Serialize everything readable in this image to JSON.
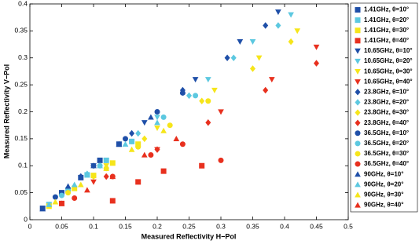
{
  "chart_data": {
    "type": "scatter",
    "x_label": "Measured Reflectivity H−Pol",
    "y_label": "Measured Reflectivity V−Pol",
    "xlim": [
      0,
      0.5
    ],
    "xticks": [
      0,
      0.05,
      0.1,
      0.15,
      0.2,
      0.25,
      0.3,
      0.35,
      0.4,
      0.45,
      0.5
    ],
    "ylim": [
      0,
      0.4
    ],
    "yticks": [
      0,
      0.05,
      0.1,
      0.15,
      0.2,
      0.25,
      0.3,
      0.35,
      0.4
    ],
    "grid": false,
    "legend": "outside-right",
    "series": [
      {
        "name": "1.41GHz, θ=10°",
        "color": "#1f4fa8",
        "marker": "square",
        "x": [
          0.02,
          0.05,
          0.08,
          0.11,
          0.14
        ],
        "values": [
          0.021,
          0.05,
          0.078,
          0.11,
          0.14
        ]
      },
      {
        "name": "1.41GHz, θ=20°",
        "color": "#5cc8e0",
        "marker": "square",
        "x": [
          0.03,
          0.06,
          0.09,
          0.12,
          0.16
        ],
        "values": [
          0.028,
          0.055,
          0.083,
          0.11,
          0.145
        ]
      },
      {
        "name": "1.41GHz, θ=30°",
        "color": "#f6e51a",
        "marker": "square",
        "x": [
          0.03,
          0.07,
          0.1,
          0.13,
          0.17
        ],
        "values": [
          0.025,
          0.058,
          0.082,
          0.105,
          0.14
        ]
      },
      {
        "name": "1.41GHz, θ=40°",
        "color": "#e8301e",
        "marker": "square",
        "x": [
          0.05,
          0.13,
          0.17,
          0.21,
          0.27
        ],
        "values": [
          0.03,
          0.035,
          0.07,
          0.09,
          0.1
        ]
      },
      {
        "name": "10.65GHz, θ=10°",
        "color": "#1f4fa8",
        "marker": "triangle-down",
        "x": [
          0.1,
          0.18,
          0.26,
          0.33,
          0.39
        ],
        "values": [
          0.1,
          0.18,
          0.26,
          0.33,
          0.385
        ]
      },
      {
        "name": "10.65GHz, θ=20°",
        "color": "#5cc8e0",
        "marker": "triangle-down",
        "x": [
          0.12,
          0.2,
          0.28,
          0.35,
          0.41
        ],
        "values": [
          0.11,
          0.19,
          0.26,
          0.33,
          0.38
        ]
      },
      {
        "name": "10.65GHz, θ=30°",
        "color": "#f6e51a",
        "marker": "triangle-down",
        "x": [
          0.12,
          0.2,
          0.29,
          0.36,
          0.42
        ],
        "values": [
          0.1,
          0.17,
          0.24,
          0.3,
          0.35
        ]
      },
      {
        "name": "10.65GHz, θ=40°",
        "color": "#e8301e",
        "marker": "triangle-down",
        "x": [
          0.1,
          0.2,
          0.3,
          0.38,
          0.45
        ],
        "values": [
          0.07,
          0.13,
          0.2,
          0.26,
          0.32
        ]
      },
      {
        "name": "23.8GHz, θ=10°",
        "color": "#1f4fa8",
        "marker": "diamond",
        "x": [
          0.08,
          0.16,
          0.24,
          0.31,
          0.37
        ],
        "values": [
          0.08,
          0.16,
          0.24,
          0.3,
          0.36
        ]
      },
      {
        "name": "23.8GHz, θ=20°",
        "color": "#5cc8e0",
        "marker": "diamond",
        "x": [
          0.09,
          0.17,
          0.25,
          0.32,
          0.39
        ],
        "values": [
          0.085,
          0.16,
          0.23,
          0.3,
          0.36
        ]
      },
      {
        "name": "23.8GHz, θ=30°",
        "color": "#f6e51a",
        "marker": "diamond",
        "x": [
          0.1,
          0.18,
          0.27,
          0.35,
          0.41
        ],
        "values": [
          0.08,
          0.15,
          0.22,
          0.28,
          0.33
        ]
      },
      {
        "name": "23.8GHz, θ=40°",
        "color": "#e8301e",
        "marker": "diamond",
        "x": [
          0.12,
          0.2,
          0.28,
          0.37,
          0.45
        ],
        "values": [
          0.08,
          0.13,
          0.18,
          0.24,
          0.29
        ]
      },
      {
        "name": "36.5GHz, θ=10°",
        "color": "#1f4fa8",
        "marker": "circle",
        "x": [
          0.04,
          0.1,
          0.15,
          0.2,
          0.24
        ],
        "values": [
          0.042,
          0.1,
          0.15,
          0.2,
          0.235
        ]
      },
      {
        "name": "36.5GHz, θ=20°",
        "color": "#5cc8e0",
        "marker": "circle",
        "x": [
          0.05,
          0.11,
          0.16,
          0.21,
          0.26
        ],
        "values": [
          0.045,
          0.1,
          0.145,
          0.19,
          0.23
        ]
      },
      {
        "name": "36.5GHz, θ=30°",
        "color": "#f6e51a",
        "marker": "circle",
        "x": [
          0.06,
          0.12,
          0.17,
          0.22,
          0.28
        ],
        "values": [
          0.05,
          0.095,
          0.135,
          0.175,
          0.22
        ]
      },
      {
        "name": "36.5GHz, θ=40°",
        "color": "#e8301e",
        "marker": "circle",
        "x": [
          0.07,
          0.13,
          0.19,
          0.24,
          0.3
        ],
        "values": [
          0.04,
          0.08,
          0.12,
          0.14,
          0.11
        ]
      },
      {
        "name": "90GHz, θ=10°",
        "color": "#1f4fa8",
        "marker": "triangle-up",
        "x": [
          0.02,
          0.06,
          0.1,
          0.14,
          0.19
        ],
        "values": [
          0.02,
          0.062,
          0.1,
          0.14,
          0.19
        ]
      },
      {
        "name": "90GHz, θ=20°",
        "color": "#5cc8e0",
        "marker": "triangle-up",
        "x": [
          0.03,
          0.07,
          0.11,
          0.15,
          0.2
        ],
        "values": [
          0.028,
          0.065,
          0.1,
          0.14,
          0.18
        ]
      },
      {
        "name": "90GHz, θ=30°",
        "color": "#f6e51a",
        "marker": "triangle-up",
        "x": [
          0.04,
          0.08,
          0.12,
          0.16,
          0.21
        ],
        "values": [
          0.033,
          0.065,
          0.095,
          0.13,
          0.165
        ]
      },
      {
        "name": "90GHz, θ=40°",
        "color": "#e8301e",
        "marker": "triangle-up",
        "x": [
          0.05,
          0.09,
          0.13,
          0.18,
          0.23
        ],
        "values": [
          0.03,
          0.055,
          0.08,
          0.12,
          0.15
        ]
      }
    ]
  }
}
